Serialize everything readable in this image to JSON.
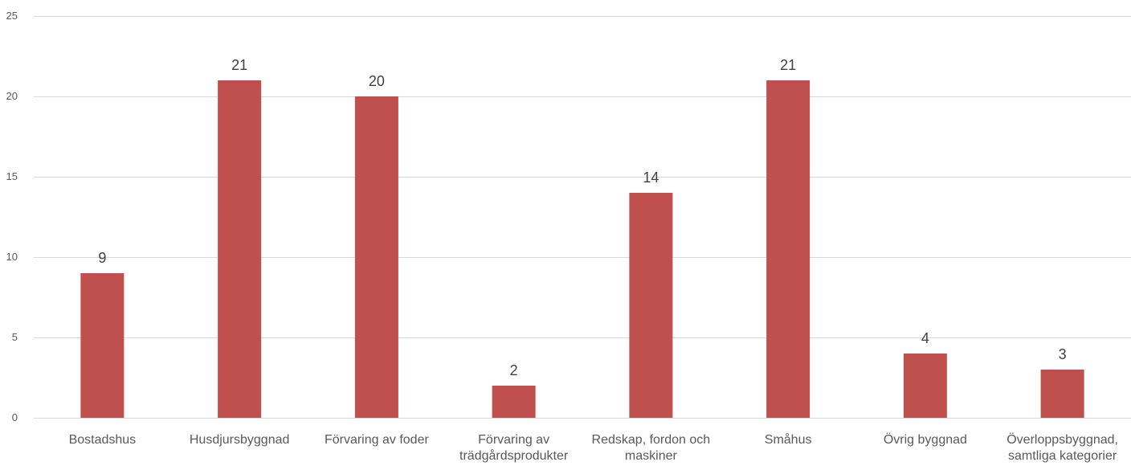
{
  "chart_data": {
    "type": "bar",
    "categories": [
      [
        "Bostadshus"
      ],
      [
        "Husdjursbyggnad"
      ],
      [
        "Förvaring av foder"
      ],
      [
        "Förvaring av",
        "trädgårdsprodukter"
      ],
      [
        "Redskap, fordon och",
        "maskiner"
      ],
      [
        "Småhus"
      ],
      [
        "Övrig byggnad"
      ],
      [
        "Överloppsbyggnad,",
        "samtliga kategorier"
      ]
    ],
    "values": [
      9,
      21,
      20,
      2,
      14,
      21,
      4,
      3
    ],
    "ylim": [
      0,
      25
    ],
    "yticks": [
      0,
      5,
      10,
      15,
      20,
      25
    ],
    "grid": true,
    "legend": "none",
    "bar_color": "#c0504d",
    "title": "",
    "xlabel": "",
    "ylabel": ""
  }
}
